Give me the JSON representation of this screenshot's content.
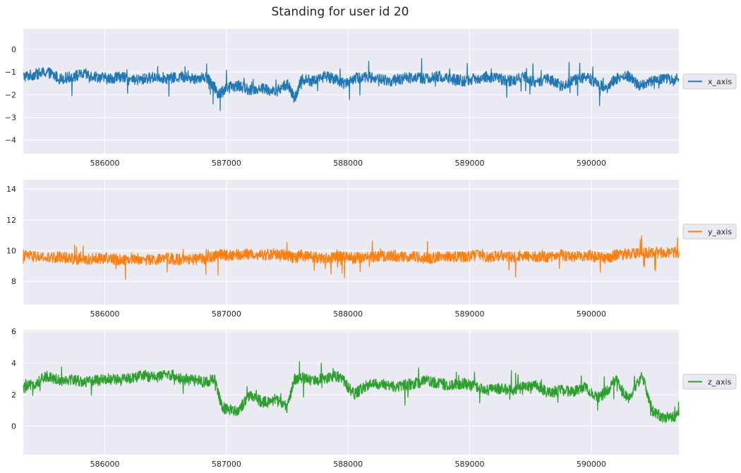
{
  "figure": {
    "title": "Standing for user id 20"
  },
  "chart_data": [
    {
      "type": "line",
      "title": "",
      "xlabel": "",
      "ylabel": "",
      "xlim": [
        585330,
        590720
      ],
      "ylim": [
        -4.6,
        0.9
      ],
      "x_ticks": [
        586000,
        587000,
        588000,
        589000,
        590000
      ],
      "y_ticks": [
        0,
        -1,
        -2,
        -3,
        -4
      ],
      "grid": true,
      "legend_position": "right",
      "series": [
        {
          "name": "x_axis",
          "color": "#1f77b4",
          "x": [
            585330,
            585430,
            585530,
            585630,
            585730,
            585830,
            585930,
            586030,
            586130,
            586230,
            586330,
            586430,
            586530,
            586630,
            586730,
            586830,
            586880,
            586940,
            587000,
            587100,
            587200,
            587300,
            587400,
            587500,
            587560,
            587620,
            587700,
            587800,
            587900,
            587960,
            588050,
            588150,
            588250,
            588350,
            588450,
            588550,
            588650,
            588750,
            588850,
            588950,
            589050,
            589150,
            589250,
            589350,
            589450,
            589550,
            589650,
            589750,
            589850,
            589950,
            590050,
            590130,
            590200,
            590300,
            590400,
            590500,
            590600,
            590720
          ],
          "y": [
            -1.2,
            -1.1,
            -1.0,
            -1.3,
            -1.2,
            -1.1,
            -1.2,
            -1.3,
            -1.2,
            -1.4,
            -1.3,
            -1.2,
            -1.3,
            -1.2,
            -1.3,
            -1.2,
            -1.5,
            -2.0,
            -1.7,
            -1.6,
            -1.8,
            -1.7,
            -1.9,
            -1.5,
            -2.2,
            -1.3,
            -1.4,
            -1.2,
            -1.3,
            -1.5,
            -1.3,
            -1.2,
            -1.3,
            -1.4,
            -1.3,
            -1.2,
            -1.3,
            -1.2,
            -1.3,
            -1.4,
            -1.3,
            -1.2,
            -1.3,
            -1.4,
            -1.2,
            -1.5,
            -1.3,
            -1.6,
            -1.4,
            -1.2,
            -1.5,
            -1.7,
            -1.3,
            -1.2,
            -1.6,
            -1.4,
            -1.3,
            -1.3
          ]
        }
      ]
    },
    {
      "type": "line",
      "title": "",
      "xlabel": "",
      "ylabel": "",
      "xlim": [
        585330,
        590720
      ],
      "ylim": [
        6.5,
        14.6
      ],
      "x_ticks": [
        586000,
        587000,
        588000,
        589000,
        590000
      ],
      "y_ticks": [
        8,
        10,
        12,
        14
      ],
      "grid": true,
      "legend_position": "right",
      "series": [
        {
          "name": "y_axis",
          "color": "#ff7f0e",
          "x": [
            585330,
            585430,
            585530,
            585630,
            585730,
            585830,
            585930,
            586030,
            586130,
            586230,
            586330,
            586430,
            586530,
            586630,
            586730,
            586830,
            586900,
            586960,
            587000,
            587100,
            587200,
            587300,
            587400,
            587500,
            587560,
            587620,
            587700,
            587800,
            587900,
            587960,
            588050,
            588150,
            588250,
            588350,
            588450,
            588550,
            588650,
            588750,
            588850,
            588950,
            589050,
            589150,
            589250,
            589350,
            589450,
            589550,
            589650,
            589750,
            589850,
            589950,
            590050,
            590130,
            590200,
            590300,
            590420,
            590500,
            590600,
            590720
          ],
          "y": [
            9.7,
            9.6,
            9.5,
            9.6,
            9.5,
            9.4,
            9.5,
            9.5,
            9.4,
            9.5,
            9.4,
            9.4,
            9.5,
            9.4,
            9.4,
            9.5,
            9.6,
            9.8,
            9.7,
            9.7,
            9.8,
            9.7,
            9.8,
            9.7,
            9.5,
            9.7,
            9.6,
            9.5,
            9.6,
            9.6,
            9.5,
            9.6,
            9.6,
            9.7,
            9.6,
            9.6,
            9.5,
            9.6,
            9.6,
            9.6,
            9.7,
            9.6,
            9.7,
            9.6,
            9.7,
            9.6,
            9.6,
            9.7,
            9.6,
            9.7,
            9.6,
            9.5,
            9.7,
            9.8,
            9.8,
            9.9,
            9.9,
            9.9
          ]
        }
      ]
    },
    {
      "type": "line",
      "title": "",
      "xlabel": "",
      "ylabel": "",
      "xlim": [
        585330,
        590720
      ],
      "ylim": [
        -1.8,
        6.1
      ],
      "x_ticks": [
        586000,
        587000,
        588000,
        589000,
        590000
      ],
      "y_ticks": [
        0,
        2,
        4,
        6
      ],
      "grid": true,
      "legend_position": "right",
      "series": [
        {
          "name": "z_axis",
          "color": "#2ca02c",
          "x": [
            585330,
            585430,
            585530,
            585630,
            585730,
            585830,
            585930,
            586030,
            586130,
            586230,
            586330,
            586430,
            586530,
            586630,
            586730,
            586830,
            586900,
            586960,
            587000,
            587100,
            587200,
            587300,
            587400,
            587500,
            587560,
            587620,
            587700,
            587800,
            587900,
            587960,
            588050,
            588150,
            588250,
            588350,
            588450,
            588550,
            588650,
            588750,
            588850,
            588950,
            589050,
            589150,
            589250,
            589350,
            589450,
            589550,
            589650,
            589750,
            589850,
            589950,
            590050,
            590130,
            590200,
            590300,
            590420,
            590500,
            590600,
            590720
          ],
          "y": [
            2.4,
            2.7,
            3.2,
            2.9,
            3.0,
            2.8,
            2.9,
            3.0,
            2.9,
            3.1,
            3.2,
            3.1,
            3.3,
            3.0,
            2.9,
            2.8,
            3.0,
            1.3,
            1.1,
            1.0,
            2.0,
            1.5,
            1.7,
            1.2,
            3.0,
            3.1,
            2.9,
            3.0,
            3.2,
            2.9,
            2.0,
            2.6,
            2.7,
            2.5,
            2.6,
            2.7,
            2.9,
            2.7,
            2.6,
            2.7,
            2.5,
            2.3,
            2.4,
            2.3,
            2.5,
            2.6,
            2.1,
            2.3,
            2.2,
            2.5,
            1.8,
            2.2,
            3.0,
            1.7,
            3.2,
            1.0,
            0.5,
            0.7
          ]
        }
      ]
    }
  ]
}
